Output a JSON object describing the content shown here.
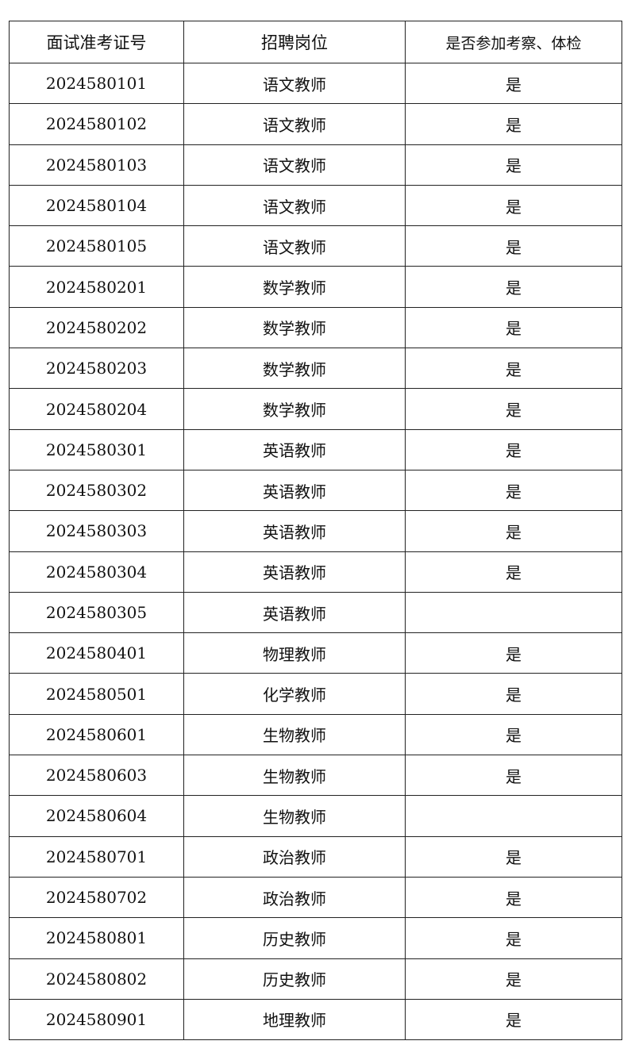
{
  "headers": [
    "面试准考证号",
    "招聘岗位",
    "是否参加考察、体检"
  ],
  "rows": [
    {
      "id": "2024580101",
      "position": "语文教师",
      "attend": "是"
    },
    {
      "id": "2024580102",
      "position": "语文教师",
      "attend": "是"
    },
    {
      "id": "2024580103",
      "position": "语文教师",
      "attend": "是"
    },
    {
      "id": "2024580104",
      "position": "语文教师",
      "attend": "是"
    },
    {
      "id": "2024580105",
      "position": "语文教师",
      "attend": "是"
    },
    {
      "id": "2024580201",
      "position": "数学教师",
      "attend": "是"
    },
    {
      "id": "2024580202",
      "position": "数学教师",
      "attend": "是"
    },
    {
      "id": "2024580203",
      "position": "数学教师",
      "attend": "是"
    },
    {
      "id": "2024580204",
      "position": "数学教师",
      "attend": "是"
    },
    {
      "id": "2024580301",
      "position": "英语教师",
      "attend": "是"
    },
    {
      "id": "2024580302",
      "position": "英语教师",
      "attend": "是"
    },
    {
      "id": "2024580303",
      "position": "英语教师",
      "attend": "是"
    },
    {
      "id": "2024580304",
      "position": "英语教师",
      "attend": "是"
    },
    {
      "id": "2024580305",
      "position": "英语教师",
      "attend": ""
    },
    {
      "id": "2024580401",
      "position": "物理教师",
      "attend": "是"
    },
    {
      "id": "2024580501",
      "position": "化学教师",
      "attend": "是"
    },
    {
      "id": "2024580601",
      "position": "生物教师",
      "attend": "是"
    },
    {
      "id": "2024580603",
      "position": "生物教师",
      "attend": "是"
    },
    {
      "id": "2024580604",
      "position": "生物教师",
      "attend": ""
    },
    {
      "id": "2024580701",
      "position": "政治教师",
      "attend": "是"
    },
    {
      "id": "2024580702",
      "position": "政治教师",
      "attend": "是"
    },
    {
      "id": "2024580801",
      "position": "历史教师",
      "attend": "是"
    },
    {
      "id": "2024580802",
      "position": "历史教师",
      "attend": "是"
    },
    {
      "id": "2024580901",
      "position": "地理教师",
      "attend": "是"
    }
  ]
}
